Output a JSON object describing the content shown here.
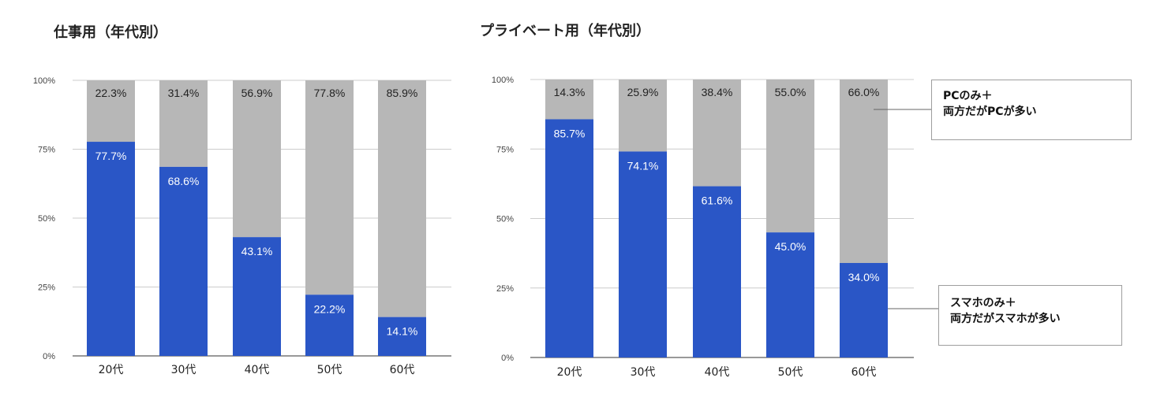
{
  "colors": {
    "sp_series": "#2a56c6",
    "pc_series": "#b7b7b7",
    "grid": "#cccccc",
    "axis": "#333333",
    "leader": "#666666"
  },
  "legend_callouts": {
    "pc": {
      "line1": "PCのみ＋",
      "line2": "両方だがPCが多い"
    },
    "smartphone": {
      "line1": "スマホのみ＋",
      "line2": "両方だがスマホが多い"
    }
  },
  "chart_data": [
    {
      "type": "bar",
      "stacked": true,
      "title": "仕事用（年代別）",
      "categories": [
        "20代",
        "30代",
        "40代",
        "50代",
        "60代"
      ],
      "ylim": [
        0,
        100
      ],
      "yticks": [
        "0%",
        "25%",
        "50%",
        "75%",
        "100%"
      ],
      "grid": true,
      "series": [
        {
          "name": "スマホのみ＋両方だがスマホが多い",
          "values": [
            77.7,
            68.6,
            43.1,
            22.2,
            14.1
          ],
          "labels": [
            "77.7%",
            "68.6%",
            "43.1%",
            "22.2%",
            "14.1%"
          ]
        },
        {
          "name": "PCのみ＋両方だがPCが多い",
          "values": [
            22.3,
            31.4,
            56.9,
            77.8,
            85.9
          ],
          "labels": [
            "22.3%",
            "31.4%",
            "56.9%",
            "77.8%",
            "85.9%"
          ]
        }
      ]
    },
    {
      "type": "bar",
      "stacked": true,
      "title": "プライベート用（年代別）",
      "categories": [
        "20代",
        "30代",
        "40代",
        "50代",
        "60代"
      ],
      "ylim": [
        0,
        100
      ],
      "yticks": [
        "0%",
        "25%",
        "50%",
        "75%",
        "100%"
      ],
      "grid": true,
      "series": [
        {
          "name": "スマホのみ＋両方だがスマホが多い",
          "values": [
            85.7,
            74.1,
            61.6,
            45.0,
            34.0
          ],
          "labels": [
            "85.7%",
            "74.1%",
            "61.6%",
            "45.0%",
            "34.0%"
          ]
        },
        {
          "name": "PCのみ＋両方だがPCが多い",
          "values": [
            14.3,
            25.9,
            38.4,
            55.0,
            66.0
          ],
          "labels": [
            "14.3%",
            "25.9%",
            "38.4%",
            "55.0%",
            "66.0%"
          ]
        }
      ]
    }
  ]
}
